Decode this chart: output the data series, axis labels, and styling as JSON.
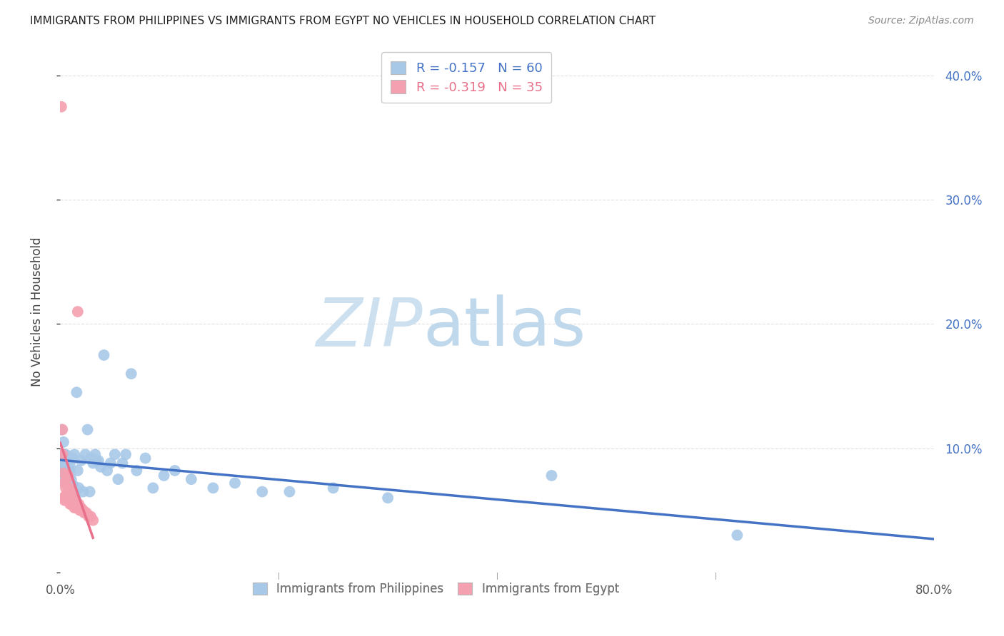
{
  "title": "IMMIGRANTS FROM PHILIPPINES VS IMMIGRANTS FROM EGYPT NO VEHICLES IN HOUSEHOLD CORRELATION CHART",
  "source": "Source: ZipAtlas.com",
  "ylabel": "No Vehicles in Household",
  "xlim": [
    0.0,
    0.8
  ],
  "ylim": [
    0.0,
    0.42
  ],
  "philippines_color": "#a8c8e8",
  "egypt_color": "#f4a0b0",
  "philippines_line_color": "#4472c4",
  "egypt_line_color": "#e8708a",
  "R_philippines": -0.157,
  "N_philippines": 60,
  "R_egypt": -0.319,
  "N_egypt": 35,
  "philippines_x": [
    0.001,
    0.002,
    0.002,
    0.003,
    0.003,
    0.003,
    0.004,
    0.004,
    0.005,
    0.005,
    0.005,
    0.006,
    0.006,
    0.007,
    0.007,
    0.008,
    0.008,
    0.009,
    0.009,
    0.01,
    0.011,
    0.012,
    0.013,
    0.014,
    0.015,
    0.016,
    0.017,
    0.019,
    0.021,
    0.023,
    0.025,
    0.027,
    0.028,
    0.03,
    0.032,
    0.033,
    0.035,
    0.037,
    0.04,
    0.043,
    0.046,
    0.05,
    0.053,
    0.057,
    0.06,
    0.065,
    0.07,
    0.078,
    0.085,
    0.095,
    0.105,
    0.12,
    0.14,
    0.16,
    0.185,
    0.21,
    0.25,
    0.3,
    0.45,
    0.62
  ],
  "philippines_y": [
    0.115,
    0.09,
    0.095,
    0.075,
    0.085,
    0.105,
    0.08,
    0.095,
    0.085,
    0.095,
    0.08,
    0.09,
    0.075,
    0.082,
    0.078,
    0.065,
    0.072,
    0.082,
    0.088,
    0.075,
    0.092,
    0.07,
    0.095,
    0.06,
    0.145,
    0.082,
    0.068,
    0.09,
    0.065,
    0.095,
    0.115,
    0.065,
    0.092,
    0.088,
    0.095,
    0.09,
    0.09,
    0.085,
    0.175,
    0.082,
    0.088,
    0.095,
    0.075,
    0.088,
    0.095,
    0.16,
    0.082,
    0.092,
    0.068,
    0.078,
    0.082,
    0.075,
    0.068,
    0.072,
    0.065,
    0.065,
    0.068,
    0.06,
    0.078,
    0.03
  ],
  "egypt_x": [
    0.001,
    0.002,
    0.002,
    0.003,
    0.003,
    0.004,
    0.004,
    0.005,
    0.005,
    0.006,
    0.006,
    0.007,
    0.007,
    0.008,
    0.008,
    0.009,
    0.009,
    0.01,
    0.01,
    0.011,
    0.012,
    0.013,
    0.014,
    0.015,
    0.016,
    0.017,
    0.018,
    0.019,
    0.02,
    0.021,
    0.022,
    0.024,
    0.026,
    0.028,
    0.03
  ],
  "egypt_y": [
    0.375,
    0.095,
    0.115,
    0.06,
    0.08,
    0.058,
    0.072,
    0.062,
    0.068,
    0.058,
    0.075,
    0.06,
    0.078,
    0.058,
    0.068,
    0.055,
    0.062,
    0.055,
    0.065,
    0.06,
    0.058,
    0.052,
    0.058,
    0.052,
    0.21,
    0.055,
    0.05,
    0.052,
    0.05,
    0.05,
    0.048,
    0.048,
    0.045,
    0.045,
    0.042
  ],
  "watermark_zip_color": "#c8dff0",
  "watermark_atlas_color": "#c8dff0",
  "background_color": "#ffffff",
  "grid_color": "#e0e0e0"
}
